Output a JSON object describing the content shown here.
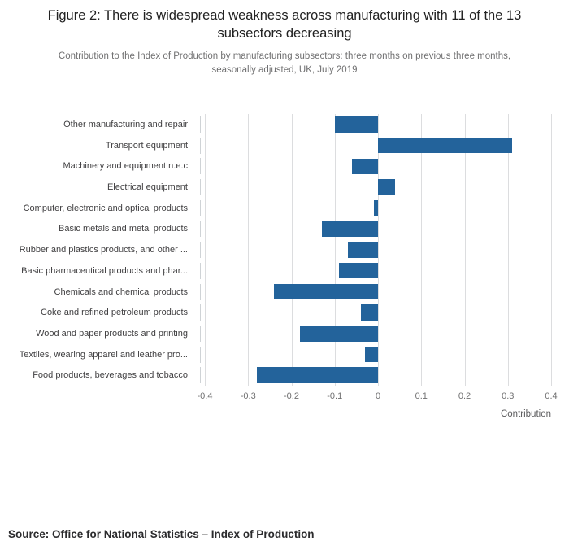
{
  "header": {
    "title": "Figure 2: There is widespread weakness across manufacturing with 11 of the 13 subsectors decreasing",
    "subtitle": "Contribution to the Index of Production by manufacturing subsectors: three months on previous three months, seasonally adjusted, UK, July 2019"
  },
  "chart_data": {
    "type": "bar",
    "orientation": "horizontal",
    "title": "Figure 2: There is widespread weakness across manufacturing with 11 of the 13 subsectors decreasing",
    "categories": [
      "Other manufacturing and repair",
      "Transport equipment",
      "Machinery and equipment n.e.c",
      "Electrical equipment",
      "Computer, electronic and optical products",
      "Basic metals and metal products",
      "Rubber and plastics products, and other ...",
      "Basic pharmaceutical products and phar...",
      "Chemicals and chemical products",
      "Coke and refined petroleum products",
      "Wood and paper products and printing",
      "Textiles, wearing apparel and leather pro...",
      "Food products, beverages and tobacco"
    ],
    "values": [
      -0.1,
      0.31,
      -0.06,
      0.04,
      -0.01,
      -0.13,
      -0.07,
      -0.09,
      -0.24,
      -0.04,
      -0.18,
      -0.03,
      -0.28
    ],
    "xlabel": "Contribution",
    "ylabel": "",
    "xlim": [
      -0.4,
      0.4
    ],
    "xticks": [
      "-0.4",
      "-0.3",
      "-0.2",
      "-0.1",
      "0",
      "0.1",
      "0.2",
      "0.3",
      "0.4"
    ],
    "grid": true,
    "legend_position": "none",
    "bar_color": "#23639b",
    "gridline_color": "#dcdddf"
  },
  "footer": {
    "source": "Source: Office for National Statistics – Index of Production"
  }
}
